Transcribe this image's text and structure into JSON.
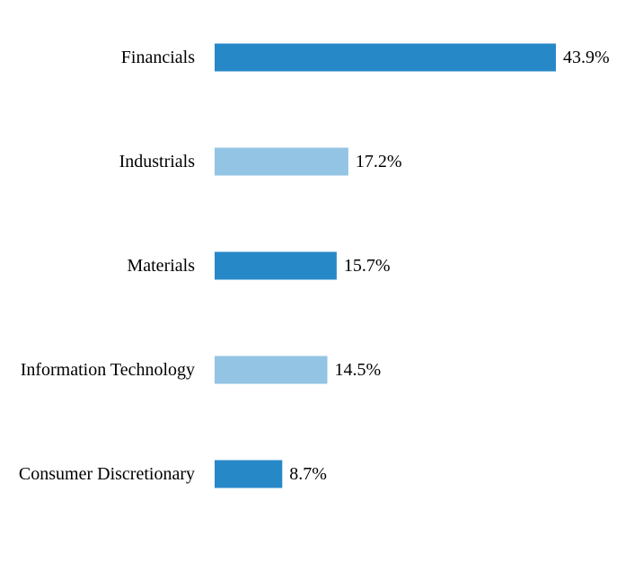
{
  "chart_data": {
    "type": "bar",
    "orientation": "horizontal",
    "categories": [
      "Financials",
      "Industrials",
      "Materials",
      "Information Technology",
      "Consumer Discretionary"
    ],
    "values": [
      43.9,
      17.2,
      15.7,
      14.5,
      8.7
    ],
    "value_labels": [
      "43.9%",
      "17.2%",
      "15.7%",
      "14.5%",
      "8.7%"
    ],
    "colors": [
      "#2788c8",
      "#93c4e3",
      "#2788c8",
      "#93c4e3",
      "#2788c8"
    ],
    "title": "",
    "xlabel": "",
    "ylabel": "",
    "xlim": [
      0,
      43.9
    ],
    "grid": false,
    "legend": "none"
  }
}
